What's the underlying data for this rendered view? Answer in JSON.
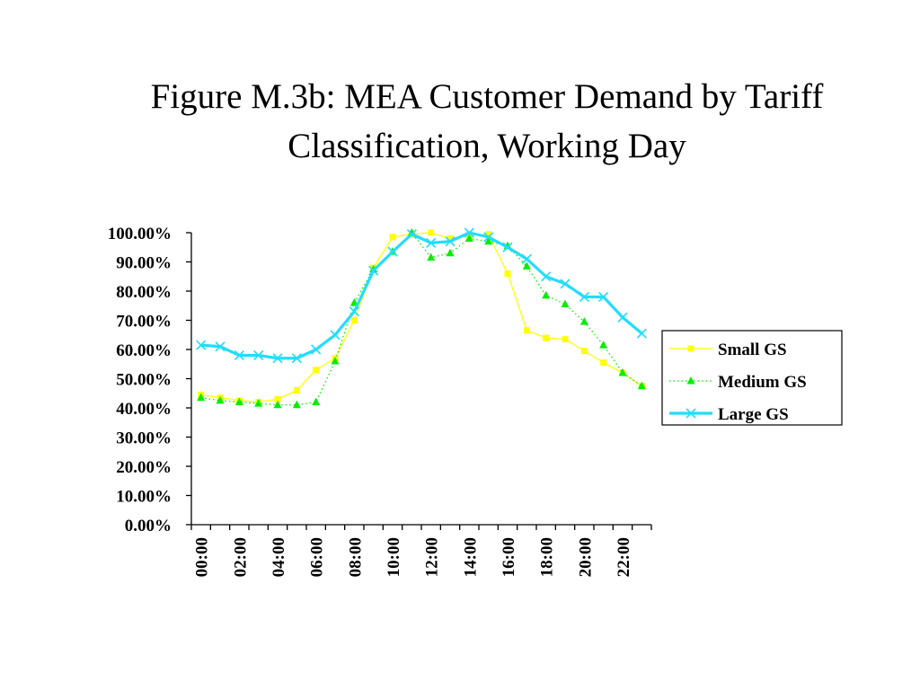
{
  "title_lines": [
    "Figure M.3b: MEA Customer Demand by Tariff",
    "Classification, Working Day"
  ],
  "chart_data": {
    "type": "line",
    "title": "Figure M.3b: MEA Customer Demand by Tariff Classification, Working Day",
    "xlabel": "",
    "ylabel": "",
    "ylim": [
      0,
      100
    ],
    "y_ticks": [
      "100.00%",
      "90.00%",
      "80.00%",
      "70.00%",
      "60.00%",
      "50.00%",
      "40.00%",
      "30.00%",
      "20.00%",
      "10.00%",
      "0.00%"
    ],
    "x_tick_labels": [
      "00:00",
      "02:00",
      "04:00",
      "06:00",
      "08:00",
      "10:00",
      "12:00",
      "14:00",
      "16:00",
      "18:00",
      "20:00",
      "22:00"
    ],
    "x": [
      "00:00",
      "01:00",
      "02:00",
      "03:00",
      "04:00",
      "05:00",
      "06:00",
      "07:00",
      "08:00",
      "09:00",
      "10:00",
      "11:00",
      "12:00",
      "13:00",
      "14:00",
      "15:00",
      "16:00",
      "17:00",
      "18:00",
      "19:00",
      "20:00",
      "21:00",
      "22:00",
      "23:00"
    ],
    "grid": false,
    "legend_position": "right",
    "series": [
      {
        "name": "Small GS",
        "color": "#ffff00",
        "line_style": "solid",
        "marker": "square",
        "values": [
          44.5,
          43.5,
          42.5,
          42,
          43,
          46,
          53,
          57,
          70,
          88,
          98.5,
          99.5,
          100,
          98,
          99,
          99.5,
          86,
          66.5,
          64,
          63.5,
          59.5,
          55.5,
          52,
          47.5
        ]
      },
      {
        "name": "Medium GS",
        "color": "#00ee00",
        "line_style": "dotted",
        "marker": "triangle",
        "values": [
          43.5,
          42.5,
          42,
          41.5,
          41,
          41,
          42,
          56,
          76,
          87.5,
          93.5,
          100,
          91.5,
          93,
          98,
          97,
          95.5,
          88.5,
          78.5,
          75.5,
          69.5,
          61.5,
          52,
          47.5
        ]
      },
      {
        "name": "Large GS",
        "color": "#22ddff",
        "line_style": "solid",
        "marker": "x",
        "values": [
          61.5,
          61,
          58,
          58,
          57,
          57,
          60,
          65,
          73,
          87,
          93.5,
          99.5,
          96.5,
          97,
          100,
          98.5,
          95,
          91,
          85,
          82.5,
          78,
          78,
          71,
          65.5
        ]
      }
    ]
  }
}
